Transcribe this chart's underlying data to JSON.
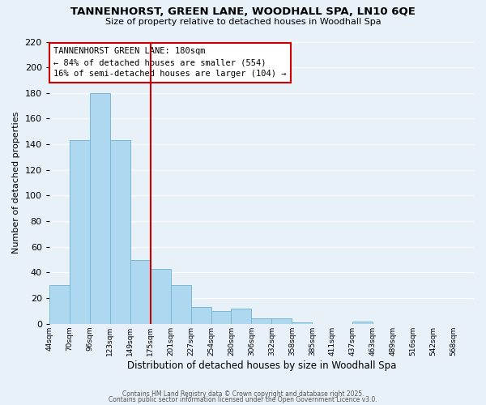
{
  "title": "TANNENHORST, GREEN LANE, WOODHALL SPA, LN10 6QE",
  "subtitle": "Size of property relative to detached houses in Woodhall Spa",
  "xlabel": "Distribution of detached houses by size in Woodhall Spa",
  "ylabel": "Number of detached properties",
  "bar_values": [
    30,
    143,
    180,
    143,
    50,
    43,
    30,
    13,
    10,
    12,
    4,
    4,
    1,
    0,
    0,
    2
  ],
  "bin_labels": [
    "44sqm",
    "70sqm",
    "96sqm",
    "123sqm",
    "149sqm",
    "175sqm",
    "201sqm",
    "227sqm",
    "254sqm",
    "280sqm",
    "306sqm",
    "332sqm",
    "358sqm",
    "385sqm",
    "411sqm",
    "437sqm",
    "463sqm",
    "489sqm",
    "516sqm",
    "542sqm",
    "568sqm"
  ],
  "bar_color": "#add8f0",
  "bar_edge_color": "#7ab8d4",
  "vline_color": "#cc0000",
  "annotation_title": "TANNENHORST GREEN LANE: 180sqm",
  "annotation_line1": "← 84% of detached houses are smaller (554)",
  "annotation_line2": "16% of semi-detached houses are larger (104) →",
  "annotation_box_color": "#ffffff",
  "annotation_box_edge": "#cc0000",
  "ylim": [
    0,
    220
  ],
  "yticks": [
    0,
    20,
    40,
    60,
    80,
    100,
    120,
    140,
    160,
    180,
    200,
    220
  ],
  "background_color": "#e8f0f8",
  "grid_color": "#ffffff",
  "footer1": "Contains HM Land Registry data © Crown copyright and database right 2025.",
  "footer2": "Contains public sector information licensed under the Open Government Licence v3.0."
}
